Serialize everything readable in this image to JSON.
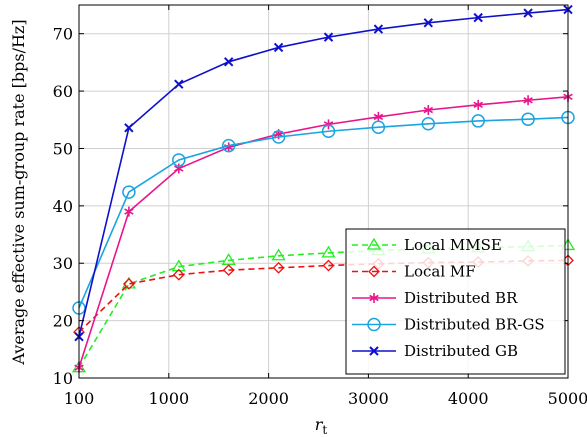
{
  "chart_data": {
    "type": "line",
    "xlabel": "r",
    "xlabel_sub": "t",
    "ylabel": "Average effective sum-group rate [bps/Hz]",
    "xlim": [
      100,
      5000
    ],
    "ylim": [
      10,
      75
    ],
    "xticks": [
      100,
      1000,
      2000,
      3000,
      4000,
      5000
    ],
    "yticks": [
      10,
      20,
      30,
      40,
      50,
      60,
      70
    ],
    "xtick_labels": [
      "100",
      "1000",
      "2000",
      "3000",
      "4000",
      "5000"
    ],
    "ytick_labels": [
      "10",
      "20",
      "30",
      "40",
      "50",
      "60",
      "70"
    ],
    "grid": true,
    "legend_position": "bottom-right",
    "x": [
      100,
      600,
      1100,
      1600,
      2100,
      2600,
      3100,
      3600,
      4100,
      4600,
      5000
    ],
    "series": [
      {
        "name": "Local MMSE",
        "color": "#22ee22",
        "dash": true,
        "marker": "triangle",
        "values": [
          11.8,
          26.4,
          29.4,
          30.5,
          31.3,
          31.8,
          32.2,
          32.5,
          32.7,
          32.9,
          33.1
        ]
      },
      {
        "name": "Local MF",
        "color": "#ee1111",
        "dash": true,
        "marker": "diamond",
        "values": [
          18.0,
          26.4,
          28.0,
          28.8,
          29.2,
          29.6,
          29.9,
          30.1,
          30.2,
          30.4,
          30.5
        ]
      },
      {
        "name": "Distributed BR",
        "color": "#e8168b",
        "dash": false,
        "marker": "star",
        "values": [
          11.8,
          39.0,
          46.5,
          50.2,
          52.5,
          54.2,
          55.5,
          56.7,
          57.6,
          58.4,
          59.0
        ]
      },
      {
        "name": "Distributed BR-GS",
        "color": "#1aa4e0",
        "dash": false,
        "marker": "circle",
        "values": [
          22.2,
          42.4,
          48.0,
          50.5,
          52.0,
          53.0,
          53.7,
          54.3,
          54.8,
          55.1,
          55.4
        ]
      },
      {
        "name": "Distributed GB",
        "color": "#1010cc",
        "dash": false,
        "marker": "cross",
        "values": [
          17.2,
          53.6,
          61.2,
          65.1,
          67.6,
          69.4,
          70.8,
          71.9,
          72.8,
          73.6,
          74.2
        ]
      }
    ]
  }
}
